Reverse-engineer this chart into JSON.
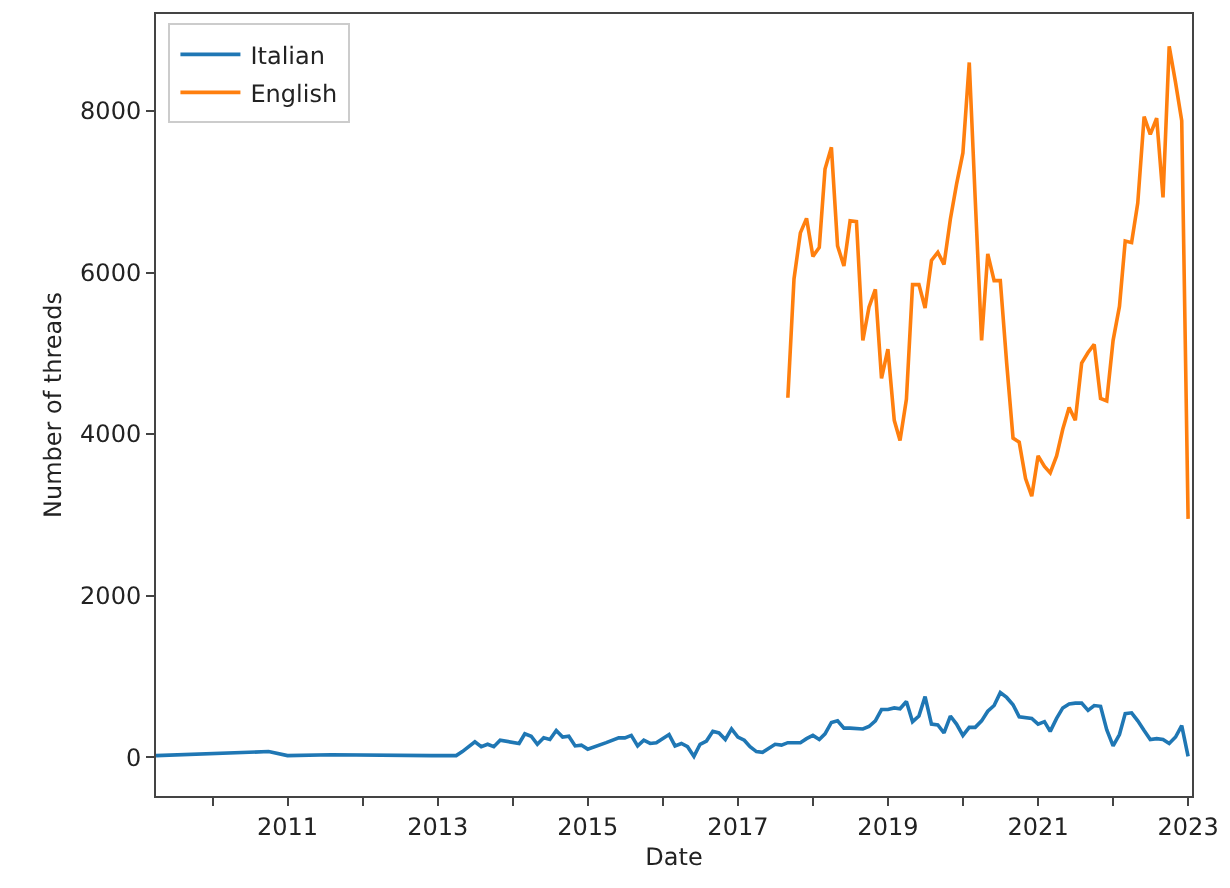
{
  "chart_data": {
    "type": "line",
    "xlabel": "Date",
    "ylabel": "Number of threads",
    "xlim": [
      "2009-04",
      "2023-01-20"
    ],
    "ylim": [
      -480,
      9200
    ],
    "yticks": [
      0,
      2000,
      4000,
      6000,
      8000
    ],
    "xticks": [
      {
        "value": "2010-01",
        "label": null
      },
      {
        "value": "2011-01",
        "label": "2011"
      },
      {
        "value": "2012-01",
        "label": null
      },
      {
        "value": "2013-01",
        "label": "2013"
      },
      {
        "value": "2014-01",
        "label": null
      },
      {
        "value": "2015-01",
        "label": "2015"
      },
      {
        "value": "2016-01",
        "label": null
      },
      {
        "value": "2017-01",
        "label": "2017"
      },
      {
        "value": "2018-01",
        "label": null
      },
      {
        "value": "2019-01",
        "label": "2019"
      },
      {
        "value": "2020-01",
        "label": null
      },
      {
        "value": "2021-01",
        "label": "2021"
      },
      {
        "value": "2022-01",
        "label": null
      },
      {
        "value": "2023-01",
        "label": "2023"
      }
    ],
    "legend": "top left",
    "marker": "none",
    "line_style": "solid",
    "series": [
      {
        "name": "Italian",
        "color": "#1f77b4",
        "x": [
          "2009-04",
          "2010-10",
          "2011-01",
          "2011-08",
          "2012-12",
          "2013-04",
          "2013-05",
          "2013-07",
          "2013-08",
          "2013-09",
          "2013-10",
          "2013-11",
          "2014-02",
          "2014-03",
          "2014-04",
          "2014-05",
          "2014-06",
          "2014-07",
          "2014-08",
          "2014-09",
          "2014-10",
          "2014-11",
          "2014-12",
          "2015-01",
          "2015-04",
          "2015-06",
          "2015-07",
          "2015-08",
          "2015-09",
          "2015-10",
          "2015-11",
          "2015-12",
          "2016-02",
          "2016-03",
          "2016-04",
          "2016-05",
          "2016-06",
          "2016-07",
          "2016-08",
          "2016-09",
          "2016-10",
          "2016-11",
          "2016-12",
          "2017-01",
          "2017-02",
          "2017-03",
          "2017-04",
          "2017-05",
          "2017-06",
          "2017-07",
          "2017-08",
          "2017-09",
          "2017-11",
          "2017-12",
          "2018-01",
          "2018-02",
          "2018-03",
          "2018-04",
          "2018-05",
          "2018-06",
          "2018-07",
          "2018-09",
          "2018-10",
          "2018-11",
          "2018-12",
          "2019-01",
          "2019-02",
          "2019-03",
          "2019-04",
          "2019-05",
          "2019-06",
          "2019-07",
          "2019-08",
          "2019-09",
          "2019-10",
          "2019-11",
          "2019-12",
          "2020-01",
          "2020-02",
          "2020-03",
          "2020-04",
          "2020-05",
          "2020-06",
          "2020-07",
          "2020-08",
          "2020-09",
          "2020-10",
          "2020-12",
          "2021-01",
          "2021-02",
          "2021-03",
          "2021-04",
          "2021-05",
          "2021-06",
          "2021-07",
          "2021-08",
          "2021-09",
          "2021-10",
          "2021-11",
          "2021-12",
          "2022-01",
          "2022-02",
          "2022-03",
          "2022-04",
          "2022-05",
          "2022-06",
          "2022-07",
          "2022-08",
          "2022-09",
          "2022-10",
          "2022-11",
          "2022-12",
          "2023-01"
        ],
        "values": [
          20,
          70,
          20,
          30,
          20,
          20,
          70,
          190,
          130,
          160,
          130,
          210,
          170,
          290,
          260,
          160,
          240,
          220,
          330,
          250,
          260,
          140,
          150,
          100,
          180,
          240,
          240,
          270,
          140,
          210,
          170,
          180,
          280,
          140,
          170,
          130,
          10,
          160,
          200,
          320,
          300,
          220,
          350,
          250,
          210,
          130,
          70,
          60,
          110,
          160,
          150,
          180,
          180,
          230,
          270,
          220,
          290,
          430,
          450,
          360,
          360,
          350,
          380,
          450,
          590,
          590,
          610,
          600,
          690,
          440,
          510,
          750,
          410,
          400,
          300,
          510,
          410,
          270,
          370,
          370,
          450,
          570,
          640,
          800,
          740,
          650,
          500,
          480,
          410,
          440,
          320,
          480,
          610,
          660,
          670,
          670,
          580,
          640,
          630,
          340,
          140,
          280,
          540,
          550,
          450,
          330,
          220,
          230,
          220,
          170,
          250,
          390,
          10
        ]
      },
      {
        "name": "English",
        "color": "#ff7f0e",
        "x": [
          "2017-09",
          "2017-10",
          "2017-11",
          "2017-12",
          "2018-01",
          "2018-02",
          "2018-03",
          "2018-04",
          "2018-05",
          "2018-06",
          "2018-07",
          "2018-08",
          "2018-09",
          "2018-10",
          "2018-11",
          "2018-12",
          "2019-01",
          "2019-02",
          "2019-03",
          "2019-04",
          "2019-05",
          "2019-06",
          "2019-07",
          "2019-08",
          "2019-09",
          "2019-10",
          "2019-11",
          "2019-12",
          "2020-01",
          "2020-02",
          "2020-03",
          "2020-04",
          "2020-05",
          "2020-06",
          "2020-07",
          "2020-08",
          "2020-09",
          "2020-10",
          "2020-11",
          "2020-12",
          "2021-01",
          "2021-02",
          "2021-03",
          "2021-04",
          "2021-05",
          "2021-06",
          "2021-07",
          "2021-08",
          "2021-09",
          "2021-10",
          "2021-11",
          "2021-12",
          "2022-01",
          "2022-02",
          "2022-03",
          "2022-04",
          "2022-05",
          "2022-06",
          "2022-07",
          "2022-08",
          "2022-09",
          "2022-10",
          "2022-11",
          "2022-12",
          "2023-01"
        ],
        "values": [
          4450,
          5920,
          6490,
          6670,
          6200,
          6310,
          7280,
          7550,
          6330,
          6080,
          6640,
          6630,
          5160,
          5570,
          5790,
          4690,
          5050,
          4170,
          3920,
          4430,
          5850,
          5850,
          5560,
          6150,
          6250,
          6100,
          6660,
          7090,
          7480,
          8600,
          6910,
          5160,
          6230,
          5900,
          5900,
          4880,
          3950,
          3900,
          3450,
          3230,
          3730,
          3600,
          3520,
          3730,
          4060,
          4330,
          4170,
          4880,
          5010,
          5110,
          4440,
          4410,
          5160,
          5580,
          6390,
          6370,
          6860,
          7930,
          7710,
          7910,
          6930,
          8800,
          8350,
          7880,
          2950
        ]
      }
    ]
  }
}
